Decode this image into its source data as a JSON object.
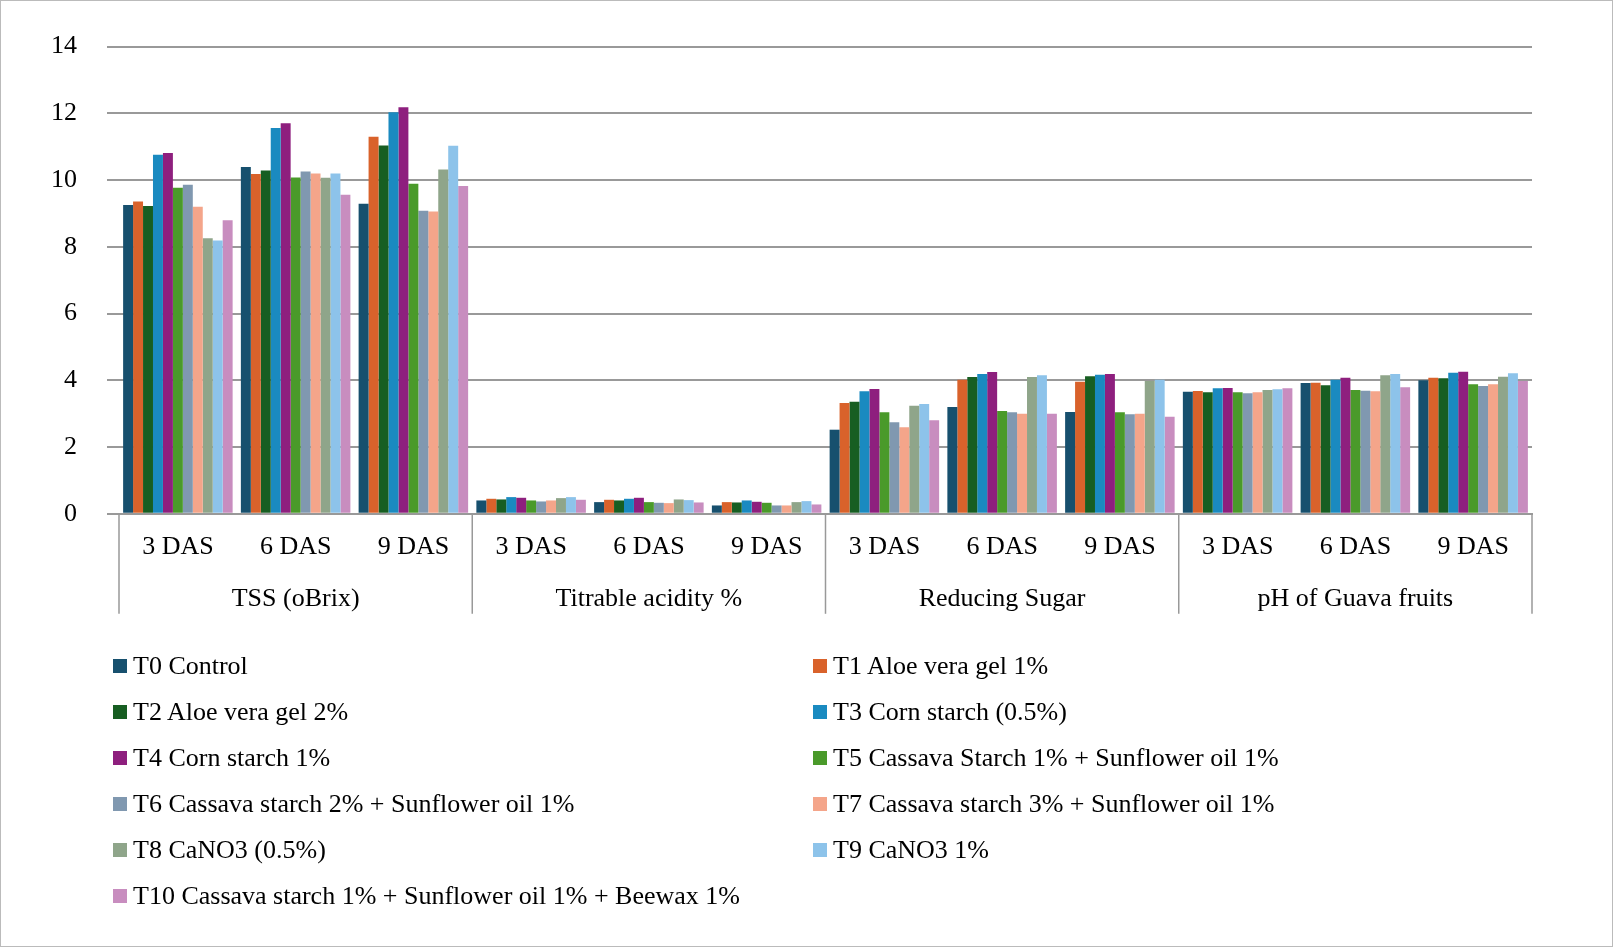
{
  "chart_data": {
    "type": "bar",
    "categories": [
      "3 DAS",
      "6 DAS",
      "9 DAS",
      "3 DAS",
      "6 DAS",
      "9 DAS",
      "3 DAS",
      "6 DAS",
      "9 DAS",
      "3 DAS",
      "6 DAS",
      "9 DAS"
    ],
    "annotations": [
      "TSS (oBrix)",
      "Titrable acidity %",
      "Reducing Sugar",
      "pH of Guava fruits"
    ],
    "series": [
      {
        "name": "T0 Control",
        "color": "#17506e",
        "values": [
          9.25,
          10.39,
          9.29,
          0.4,
          0.35,
          0.25,
          2.52,
          3.2,
          3.05,
          3.66,
          3.92,
          4.0
        ]
      },
      {
        "name": "T1  Aloe vera gel 1%",
        "color": "#d9622b",
        "values": [
          9.36,
          10.18,
          11.3,
          0.45,
          0.42,
          0.35,
          3.32,
          4.02,
          3.96,
          3.68,
          3.93,
          4.08
        ]
      },
      {
        "name": "T2 Aloe vera gel 2%",
        "color": "#175e22",
        "values": [
          9.22,
          10.29,
          11.04,
          0.43,
          0.4,
          0.34,
          3.36,
          4.1,
          4.12,
          3.64,
          3.85,
          4.06
        ]
      },
      {
        "name": "T3 Corn starch (0.5%)",
        "color": "#1a8ac0",
        "values": [
          10.76,
          11.56,
          12.03,
          0.5,
          0.45,
          0.4,
          3.67,
          4.19,
          4.17,
          3.76,
          4.02,
          4.23
        ]
      },
      {
        "name": "T4 Corn starch 1%",
        "color": "#8e1f7e",
        "values": [
          10.81,
          11.7,
          12.18,
          0.48,
          0.48,
          0.36,
          3.74,
          4.25,
          4.19,
          3.77,
          4.08,
          4.26
        ]
      },
      {
        "name": "T5 Cassava Starch 1% + Sunflower oil 1%",
        "color": "#4a9a2a",
        "values": [
          9.77,
          10.08,
          9.89,
          0.4,
          0.35,
          0.33,
          3.04,
          3.08,
          3.04,
          3.64,
          3.71,
          3.88
        ]
      },
      {
        "name": "T6 Cassava starch 2% + Sunflower oil 1%",
        "color": "#8098b0",
        "values": [
          9.86,
          10.26,
          9.08,
          0.37,
          0.33,
          0.25,
          2.74,
          3.04,
          2.98,
          3.61,
          3.69,
          3.83
        ]
      },
      {
        "name": "T7 Cassava starch 3% + Sunflower oil 1%",
        "color": "#f4a58a",
        "values": [
          9.2,
          10.2,
          9.06,
          0.4,
          0.32,
          0.25,
          2.59,
          3.0,
          3.0,
          3.64,
          3.67,
          3.88
        ]
      },
      {
        "name": "T8 CaNO3 (0.5%)",
        "color": "#8fa58a",
        "values": [
          8.26,
          10.07,
          10.32,
          0.47,
          0.43,
          0.35,
          3.24,
          4.1,
          3.98,
          3.71,
          4.15,
          4.11
        ]
      },
      {
        "name": "T9 CaNO3 1%",
        "color": "#8dc3ea",
        "values": [
          8.19,
          10.2,
          11.03,
          0.5,
          0.41,
          0.38,
          3.29,
          4.15,
          4.02,
          3.73,
          4.19,
          4.21
        ]
      },
      {
        "name": "T10 Cassava starch 1% + Sunflower oil 1% + Beewax 1%",
        "color": "#c88dbf",
        "values": [
          8.8,
          9.56,
          9.82,
          0.42,
          0.34,
          0.28,
          2.8,
          3.0,
          2.91,
          3.76,
          3.79,
          3.98
        ]
      }
    ],
    "ylim": [
      0,
      14
    ],
    "yticks": [
      0,
      2,
      4,
      6,
      8,
      10,
      12,
      14
    ],
    "grid": "y",
    "legend": "bottom"
  }
}
